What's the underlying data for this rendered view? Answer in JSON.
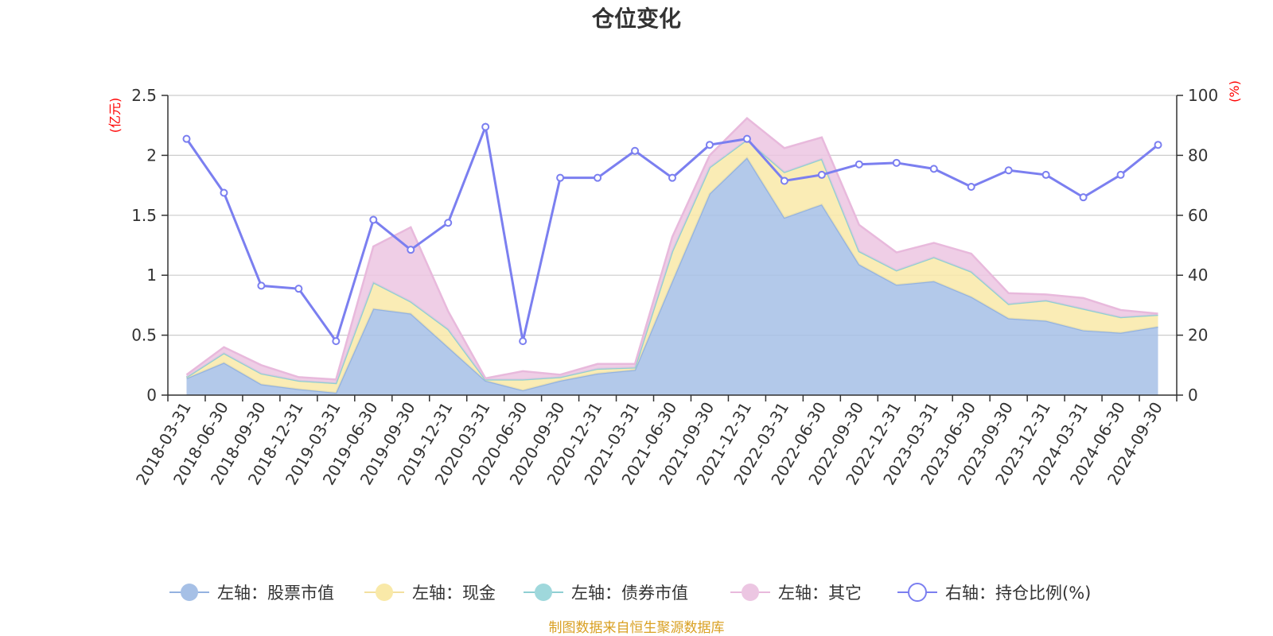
{
  "chart_data": {
    "type": "area",
    "title": "仓位变化",
    "left_axis_unit": "(亿元)",
    "right_axis_unit": "(%)",
    "categories": [
      "2018-03-31",
      "2018-06-30",
      "2018-09-30",
      "2018-12-31",
      "2019-03-31",
      "2019-06-30",
      "2019-09-30",
      "2019-12-31",
      "2020-03-31",
      "2020-06-30",
      "2020-09-30",
      "2020-12-31",
      "2021-03-31",
      "2021-06-30",
      "2021-09-30",
      "2021-12-31",
      "2022-03-31",
      "2022-06-30",
      "2022-09-30",
      "2022-12-31",
      "2023-03-31",
      "2023-06-30",
      "2023-09-30",
      "2023-12-31",
      "2024-03-31",
      "2024-06-30",
      "2024-09-30"
    ],
    "left_ylim": [
      0,
      2.5
    ],
    "left_yticks": [
      "0",
      "0.5",
      "1",
      "1.5",
      "2",
      "2.5"
    ],
    "right_ylim": [
      0,
      100
    ],
    "right_yticks": [
      "0",
      "20",
      "40",
      "60",
      "80",
      "100"
    ],
    "series": [
      {
        "name": "左轴：股票市值",
        "axis": "left",
        "stack": true,
        "color": "#a6c0e6",
        "line_color": "#93b2e0",
        "values": [
          0.14,
          0.27,
          0.09,
          0.05,
          0.02,
          0.72,
          0.68,
          0.4,
          0.12,
          0.04,
          0.12,
          0.18,
          0.21,
          0.95,
          1.68,
          1.98,
          1.48,
          1.59,
          1.09,
          0.92,
          0.95,
          0.82,
          0.64,
          0.62,
          0.54,
          0.52,
          0.57
        ]
      },
      {
        "name": "左轴：现金",
        "axis": "left",
        "stack": true,
        "color": "#f9e9a8",
        "line_color": "#f3e0a0",
        "values": [
          0.01,
          0.08,
          0.09,
          0.07,
          0.08,
          0.22,
          0.1,
          0.15,
          0.01,
          0.09,
          0.03,
          0.04,
          0.02,
          0.25,
          0.22,
          0.15,
          0.38,
          0.38,
          0.11,
          0.12,
          0.2,
          0.21,
          0.12,
          0.17,
          0.18,
          0.13,
          0.1
        ]
      },
      {
        "name": "左轴：债券市值",
        "axis": "left",
        "stack": true,
        "color": "#9fd8dc",
        "line_color": "#8fcfd3",
        "values": [
          0,
          0,
          0,
          0,
          0,
          0,
          0,
          0,
          0,
          0,
          0,
          0,
          0,
          0,
          0,
          0,
          0,
          0,
          0,
          0,
          0,
          0,
          0,
          0,
          0,
          0,
          0
        ]
      },
      {
        "name": "左轴：其它",
        "axis": "left",
        "stack": true,
        "color": "#ecc6e2",
        "line_color": "#e8b9dc",
        "values": [
          0.02,
          0.05,
          0.07,
          0.03,
          0.03,
          0.3,
          0.62,
          0.15,
          0.01,
          0.07,
          0.02,
          0.04,
          0.03,
          0.12,
          0.1,
          0.18,
          0.2,
          0.18,
          0.22,
          0.15,
          0.12,
          0.15,
          0.09,
          0.05,
          0.09,
          0.06,
          0.01
        ]
      },
      {
        "name": "右轴：持仓比例(%)",
        "axis": "right",
        "type": "line",
        "color": "#7b7ff0",
        "values": [
          85.5,
          67.5,
          36.5,
          35.5,
          18.0,
          58.5,
          48.5,
          57.5,
          89.5,
          18.0,
          72.5,
          72.5,
          81.5,
          72.5,
          83.5,
          85.5,
          71.5,
          73.5,
          77.0,
          77.5,
          75.5,
          69.5,
          75.0,
          73.5,
          66.0,
          73.5,
          83.5
        ]
      }
    ],
    "legend_position": "bottom",
    "grid": true
  },
  "footer": {
    "source": "制图数据来自恒生聚源数据库"
  }
}
